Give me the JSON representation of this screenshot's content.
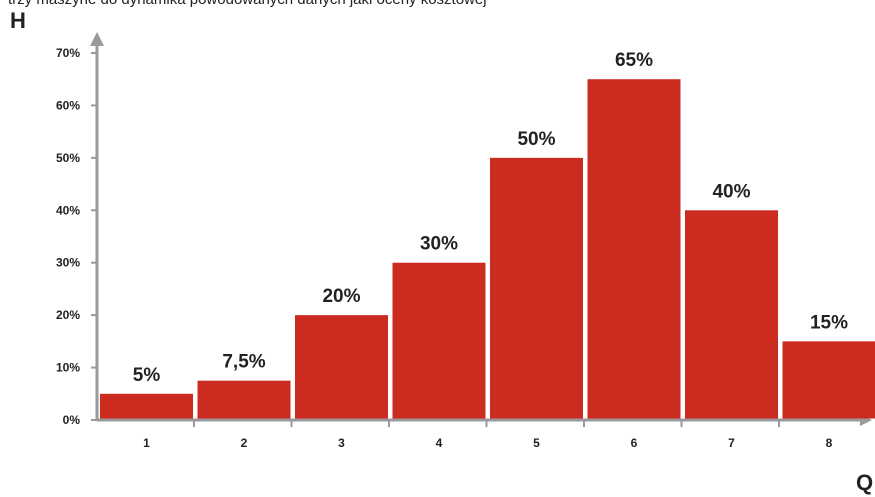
{
  "header_text": "trzy maszyne do dynamika powodowanych danych jaki oceny kosztowej",
  "chart_data": {
    "type": "bar",
    "categories": [
      "1",
      "2",
      "3",
      "4",
      "5",
      "6",
      "7",
      "8"
    ],
    "values": [
      5,
      7.5,
      20,
      30,
      50,
      65,
      40,
      15
    ],
    "data_labels": [
      "5%",
      "7,5%",
      "20%",
      "30%",
      "50%",
      "65%",
      "40%",
      "15%"
    ],
    "y_tick_labels": [
      "0%",
      "10%",
      "20%",
      "30%",
      "40%",
      "50%",
      "60%",
      "70%"
    ],
    "y_ticks": [
      0,
      10,
      20,
      30,
      40,
      50,
      60,
      70
    ],
    "ylim": [
      0,
      70
    ],
    "ylabel": "H",
    "xlabel": "Q",
    "grid": false,
    "colors": {
      "bar": "#cc2b20",
      "axis": "#9a9a9a",
      "text": "#222222"
    }
  }
}
